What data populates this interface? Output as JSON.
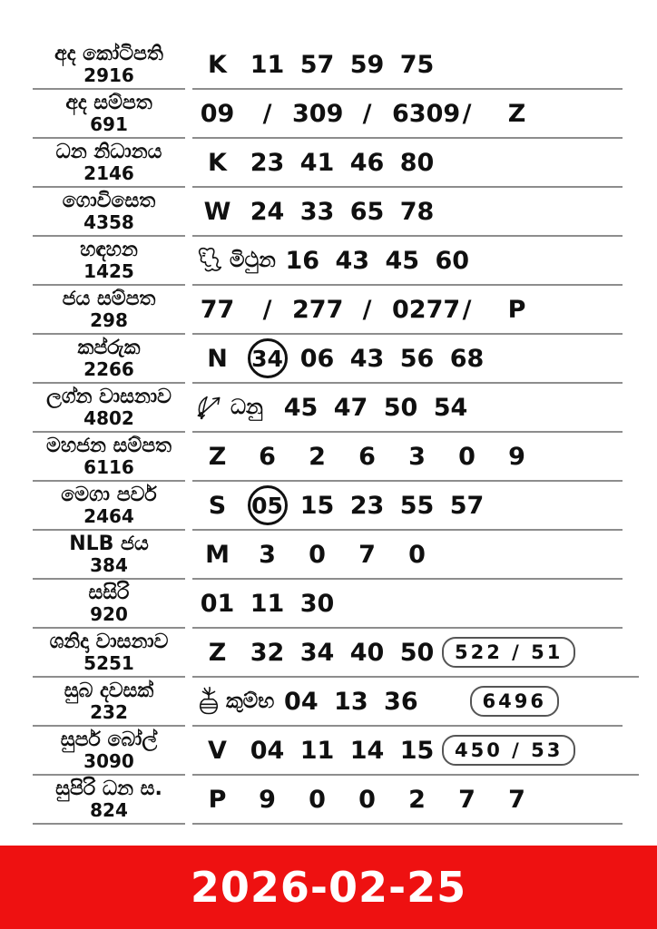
{
  "table": {
    "rows": [
      {
        "name": "අද කෝටිපති",
        "draw": "2916",
        "tokens": [
          {
            "type": "text",
            "value": "K"
          },
          {
            "type": "text",
            "value": "11"
          },
          {
            "type": "text",
            "value": "57"
          },
          {
            "type": "text",
            "value": "59"
          },
          {
            "type": "text",
            "value": "75"
          }
        ]
      },
      {
        "name": "අද සම්පත",
        "draw": "691",
        "tokens": [
          {
            "type": "text",
            "value": "09"
          },
          {
            "type": "slash",
            "value": "/"
          },
          {
            "type": "text",
            "value": "309"
          },
          {
            "type": "slash",
            "value": "/"
          },
          {
            "type": "text",
            "value": "6309"
          },
          {
            "type": "slash",
            "value": "/"
          },
          {
            "type": "text",
            "value": "Z"
          }
        ]
      },
      {
        "name": "ධන නිධානය",
        "draw": "2146",
        "tokens": [
          {
            "type": "text",
            "value": "K"
          },
          {
            "type": "text",
            "value": "23"
          },
          {
            "type": "text",
            "value": "41"
          },
          {
            "type": "text",
            "value": "46"
          },
          {
            "type": "text",
            "value": "80"
          }
        ]
      },
      {
        "name": "ගොවිසෙත",
        "draw": "4358",
        "tokens": [
          {
            "type": "text",
            "value": "W"
          },
          {
            "type": "text",
            "value": "24"
          },
          {
            "type": "text",
            "value": "33"
          },
          {
            "type": "text",
            "value": "65"
          },
          {
            "type": "text",
            "value": "78"
          }
        ]
      },
      {
        "name": "හඳහන",
        "draw": "1425",
        "tokens": [
          {
            "type": "zodiac",
            "icon": "gemini-twins-icon",
            "value": "මිථුන"
          },
          {
            "type": "text",
            "value": "16"
          },
          {
            "type": "text",
            "value": "43"
          },
          {
            "type": "text",
            "value": "45"
          },
          {
            "type": "text",
            "value": "60"
          }
        ]
      },
      {
        "name": "ජය සම්පත",
        "draw": "298",
        "tokens": [
          {
            "type": "text",
            "value": "77"
          },
          {
            "type": "slash",
            "value": "/"
          },
          {
            "type": "text",
            "value": "277"
          },
          {
            "type": "slash",
            "value": "/"
          },
          {
            "type": "text",
            "value": "0277"
          },
          {
            "type": "slash",
            "value": "/"
          },
          {
            "type": "text",
            "value": "P"
          }
        ]
      },
      {
        "name": "කප්රුක",
        "draw": "2266",
        "tokens": [
          {
            "type": "text",
            "value": "N"
          },
          {
            "type": "circled",
            "value": "34"
          },
          {
            "type": "text",
            "value": "06"
          },
          {
            "type": "text",
            "value": "43"
          },
          {
            "type": "text",
            "value": "56"
          },
          {
            "type": "text",
            "value": "68"
          }
        ]
      },
      {
        "name": "ලග්න වාසනාව",
        "draw": "4802",
        "tokens": [
          {
            "type": "zodiac",
            "icon": "sagittarius-bow-icon",
            "value": "ධනු"
          },
          {
            "type": "text",
            "value": "45"
          },
          {
            "type": "text",
            "value": "47"
          },
          {
            "type": "text",
            "value": "50"
          },
          {
            "type": "text",
            "value": "54"
          }
        ]
      },
      {
        "name": "මහජන සම්පත",
        "draw": "6116",
        "tokens": [
          {
            "type": "text",
            "value": "Z"
          },
          {
            "type": "text",
            "value": "6"
          },
          {
            "type": "text",
            "value": "2"
          },
          {
            "type": "text",
            "value": "6"
          },
          {
            "type": "text",
            "value": "3"
          },
          {
            "type": "text",
            "value": "0"
          },
          {
            "type": "text",
            "value": "9"
          }
        ]
      },
      {
        "name": "මෙගා පවර්",
        "draw": "2464",
        "tokens": [
          {
            "type": "text",
            "value": "S"
          },
          {
            "type": "circled",
            "value": "05"
          },
          {
            "type": "text",
            "value": "15"
          },
          {
            "type": "text",
            "value": "23"
          },
          {
            "type": "text",
            "value": "55"
          },
          {
            "type": "text",
            "value": "57"
          }
        ]
      },
      {
        "name": "NLB ජය",
        "draw": "384",
        "tokens": [
          {
            "type": "text",
            "value": "M"
          },
          {
            "type": "text",
            "value": "3"
          },
          {
            "type": "text",
            "value": "0"
          },
          {
            "type": "text",
            "value": "7"
          },
          {
            "type": "text",
            "value": "0"
          }
        ]
      },
      {
        "name": "සසිරි",
        "draw": "920",
        "tokens": [
          {
            "type": "text",
            "value": "01"
          },
          {
            "type": "text",
            "value": "11"
          },
          {
            "type": "text",
            "value": "30"
          }
        ]
      },
      {
        "name": "ශනිදා වාසනාව",
        "draw": "5251",
        "tokens": [
          {
            "type": "text",
            "value": "Z"
          },
          {
            "type": "text",
            "value": "32"
          },
          {
            "type": "text",
            "value": "34"
          },
          {
            "type": "text",
            "value": "40"
          },
          {
            "type": "text",
            "value": "50"
          },
          {
            "type": "boxed",
            "value": "522 / 51"
          }
        ]
      },
      {
        "name": "සුබ දවසක්",
        "draw": "232",
        "tokens": [
          {
            "type": "zodiac",
            "icon": "aquarius-pot-icon",
            "value": "කුම්භ"
          },
          {
            "type": "text",
            "value": "04"
          },
          {
            "type": "text",
            "value": "13"
          },
          {
            "type": "text",
            "value": "36"
          },
          {
            "type": "boxed",
            "value": "6496"
          }
        ]
      },
      {
        "name": "සුපර් බෝල්",
        "draw": "3090",
        "tokens": [
          {
            "type": "text",
            "value": "V"
          },
          {
            "type": "text",
            "value": "04"
          },
          {
            "type": "text",
            "value": "11"
          },
          {
            "type": "text",
            "value": "14"
          },
          {
            "type": "text",
            "value": "15"
          },
          {
            "type": "boxed",
            "value": "450 / 53"
          }
        ]
      },
      {
        "name": "සුපිරි ධන ස.",
        "draw": "824",
        "tokens": [
          {
            "type": "text",
            "value": "P"
          },
          {
            "type": "text",
            "value": "9"
          },
          {
            "type": "text",
            "value": "0"
          },
          {
            "type": "text",
            "value": "0"
          },
          {
            "type": "text",
            "value": "2"
          },
          {
            "type": "text",
            "value": "7"
          },
          {
            "type": "text",
            "value": "7"
          }
        ]
      }
    ]
  },
  "footer": {
    "date": "2026-02-25",
    "banner_color": "#ee1111",
    "text_color": "#ffffff"
  }
}
